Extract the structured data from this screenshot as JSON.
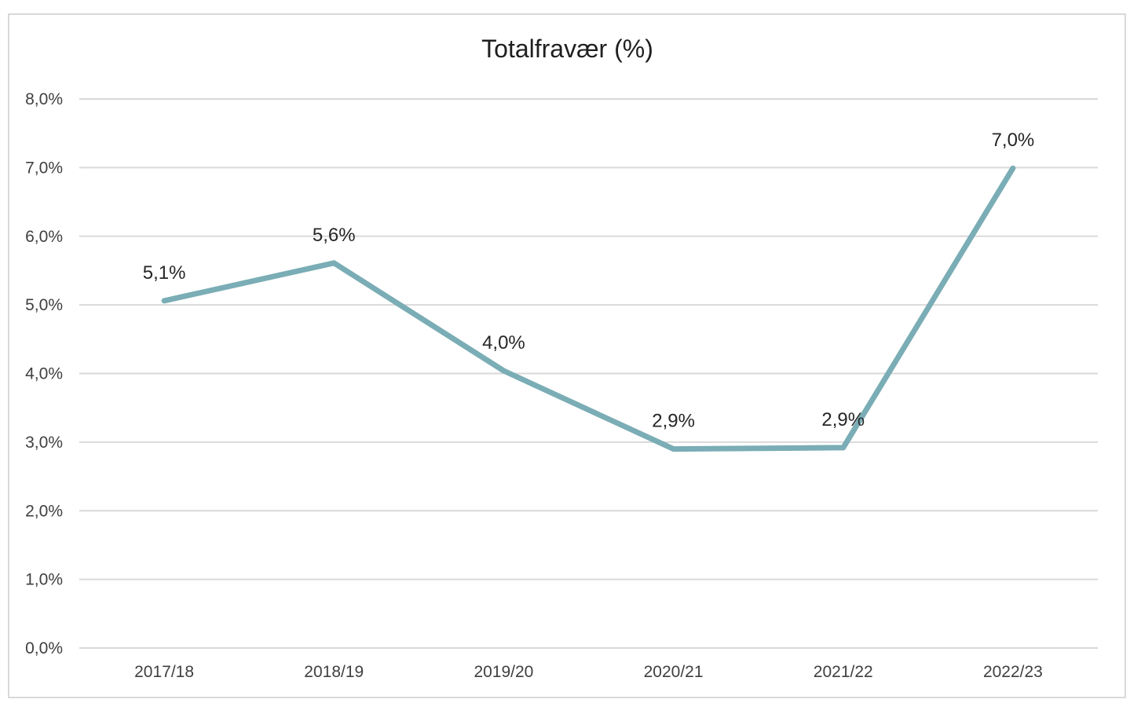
{
  "chart_data": {
    "type": "line",
    "title": "Totalfravær (%)",
    "xlabel": "",
    "ylabel": "",
    "categories": [
      "2017/18",
      "2018/19",
      "2019/20",
      "2020/21",
      "2021/22",
      "2022/23"
    ],
    "series": [
      {
        "values": [
          5.06,
          5.61,
          4.04,
          2.9,
          2.92,
          6.99
        ],
        "labels": [
          "5,1%",
          "5,6%",
          "4,0%",
          "2,9%",
          "2,9%",
          "7,0%"
        ],
        "color": "#7aadb5"
      }
    ],
    "ylim": [
      0,
      8
    ],
    "yticks": [
      0,
      1,
      2,
      3,
      4,
      5,
      6,
      7,
      8
    ],
    "ytick_labels": [
      "0,0%",
      "1,0%",
      "2,0%",
      "3,0%",
      "4,0%",
      "5,0%",
      "6,0%",
      "7,0%",
      "8,0%"
    ],
    "grid": true,
    "legend": "none",
    "gridline_color": "#d9d9d9"
  }
}
